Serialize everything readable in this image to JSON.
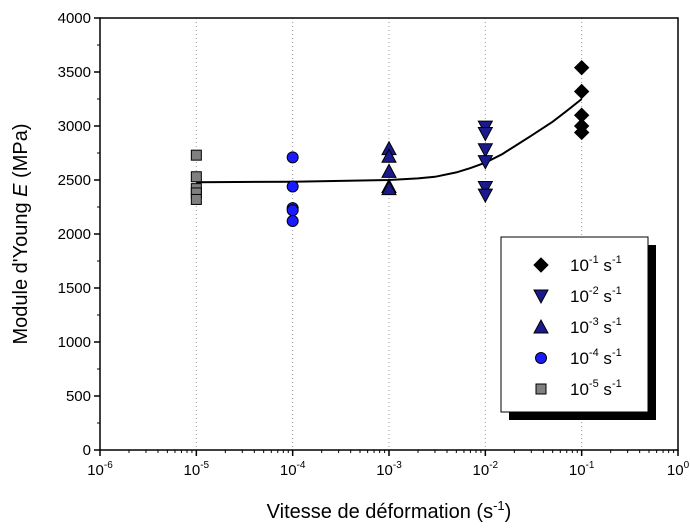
{
  "chart_data": {
    "type": "scatter",
    "title": "",
    "xlabel": "Vitesse de déformation (s",
    "xlabel_sup": "-1",
    "xlabel_end": ")",
    "ylabel": "Module d'Young ",
    "ylabel_italic": "E",
    "ylabel_end": " (MPa)",
    "x_scale": "log",
    "xlim": [
      1e-06,
      1
    ],
    "ylim": [
      0,
      4000
    ],
    "x_ticks": [
      {
        "value": 1e-06,
        "base": "10",
        "exp": "-6"
      },
      {
        "value": 1e-05,
        "base": "10",
        "exp": "-5"
      },
      {
        "value": 0.0001,
        "base": "10",
        "exp": "-4"
      },
      {
        "value": 0.001,
        "base": "10",
        "exp": "-3"
      },
      {
        "value": 0.01,
        "base": "10",
        "exp": "-2"
      },
      {
        "value": 0.1,
        "base": "10",
        "exp": "-1"
      },
      {
        "value": 1,
        "base": "10",
        "exp": "0"
      }
    ],
    "y_ticks": [
      {
        "value": 0,
        "label": "0"
      },
      {
        "value": 500,
        "label": "500"
      },
      {
        "value": 1000,
        "label": "1000"
      },
      {
        "value": 1500,
        "label": "1500"
      },
      {
        "value": 2000,
        "label": "2000"
      },
      {
        "value": 2500,
        "label": "2500"
      },
      {
        "value": 3000,
        "label": "3000"
      },
      {
        "value": 3500,
        "label": "3500"
      },
      {
        "value": 4000,
        "label": "4000"
      }
    ],
    "grid": "vertical-dotted-at-major-x",
    "legend_position": "bottom-right",
    "series": [
      {
        "name": "10",
        "name_exp": "-1",
        "name_unit": " s",
        "name_unit_exp": "-1",
        "marker": "diamond",
        "color": "#000000",
        "x": 0.1,
        "y": [
          3540,
          3320,
          3100,
          3000,
          2940
        ]
      },
      {
        "name": "10",
        "name_exp": "-2",
        "name_unit": " s",
        "name_unit_exp": "-1",
        "marker": "triangle-down",
        "color": "#1a1a8c",
        "x": 0.01,
        "y": [
          2990,
          2930,
          2780,
          2670,
          2430,
          2360
        ]
      },
      {
        "name": "10",
        "name_exp": "-3",
        "name_unit": " s",
        "name_unit_exp": "-1",
        "marker": "triangle-up",
        "color": "#1a1a8c",
        "x": 0.001,
        "y": [
          2790,
          2720,
          2580,
          2440,
          2420
        ]
      },
      {
        "name": "10",
        "name_exp": "-4",
        "name_unit": " s",
        "name_unit_exp": "-1",
        "marker": "circle",
        "color": "#1a1aff",
        "x": 0.0001,
        "y": [
          2710,
          2440,
          2240,
          2220,
          2120
        ]
      },
      {
        "name": "10",
        "name_exp": "-5",
        "name_unit": " s",
        "name_unit_exp": "-1",
        "marker": "square",
        "color": "#808080",
        "x": 1e-05,
        "y": [
          2730,
          2530,
          2420,
          2380,
          2320
        ]
      }
    ],
    "fit_curve": {
      "color": "#000000",
      "points": [
        [
          1e-05,
          2480
        ],
        [
          0.0001,
          2484
        ],
        [
          0.001,
          2500
        ],
        [
          0.002,
          2515
        ],
        [
          0.003,
          2530
        ],
        [
          0.005,
          2570
        ],
        [
          0.007,
          2610
        ],
        [
          0.01,
          2660
        ],
        [
          0.015,
          2740
        ],
        [
          0.02,
          2810
        ],
        [
          0.03,
          2910
        ],
        [
          0.05,
          3040
        ],
        [
          0.07,
          3140
        ],
        [
          0.1,
          3250
        ]
      ]
    }
  }
}
